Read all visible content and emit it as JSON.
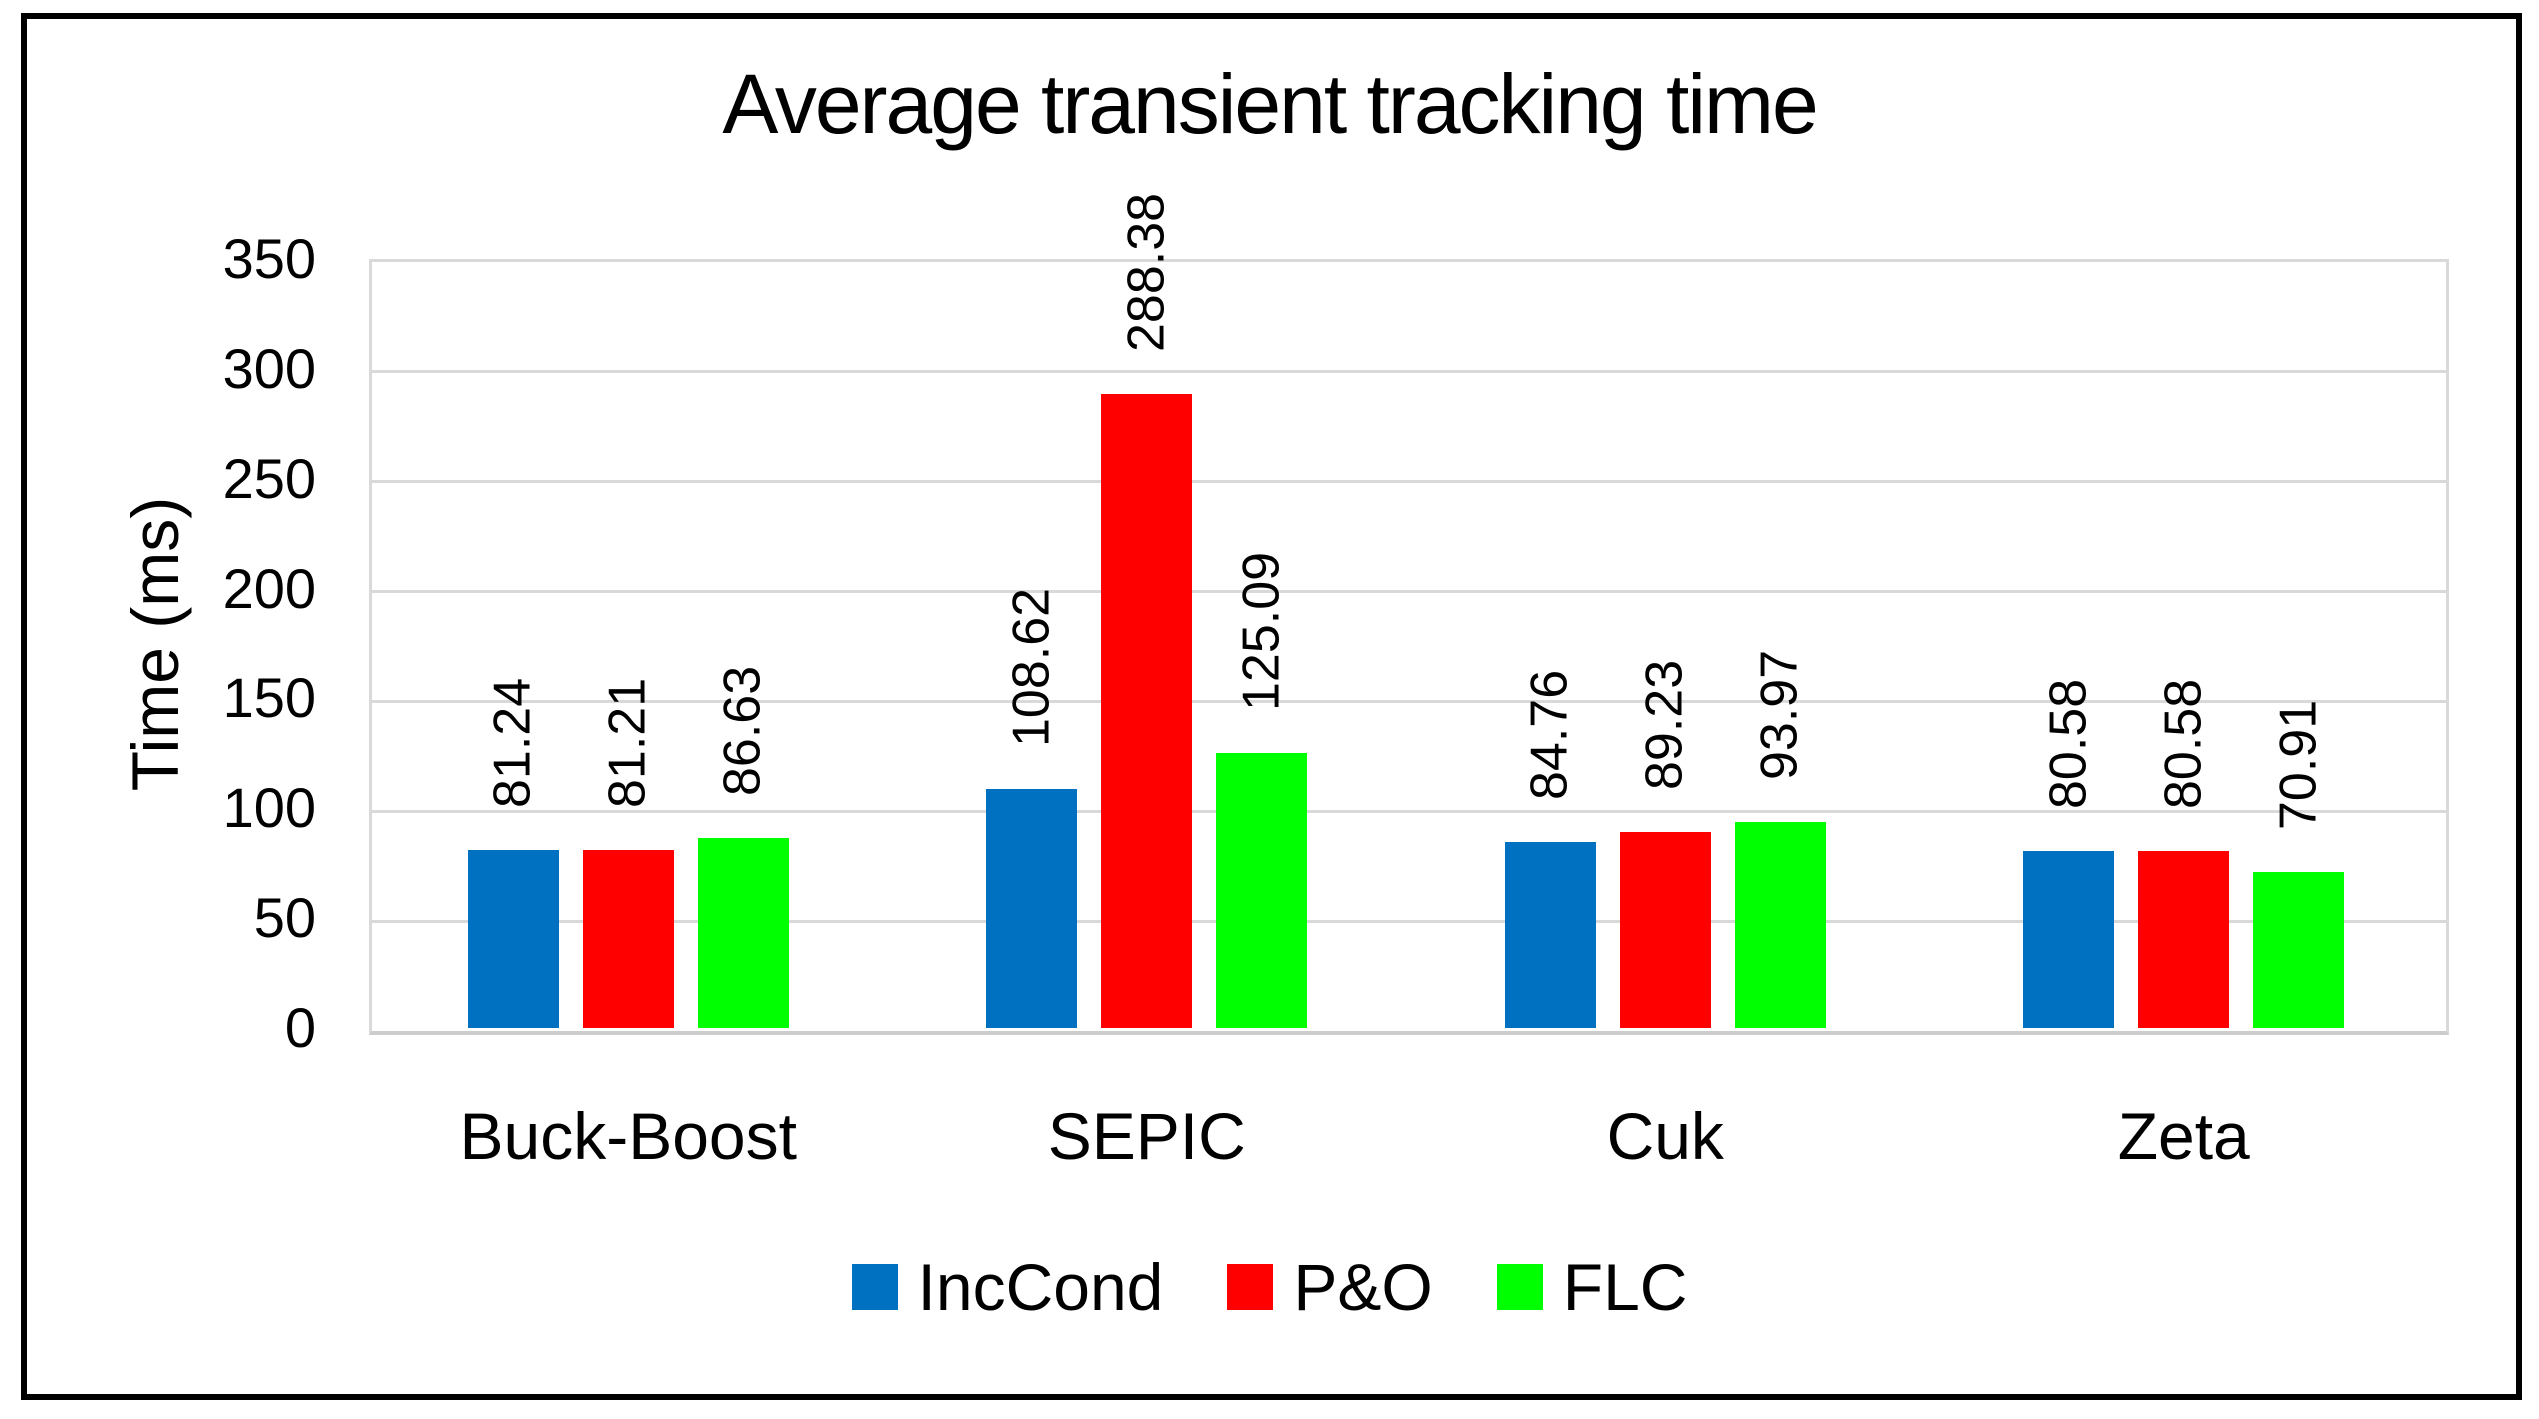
{
  "chart_data": {
    "type": "bar",
    "title": "Average transient tracking time",
    "ylabel": "Time (ms)",
    "xlabel": "",
    "categories": [
      "Buck-Boost",
      "SEPIC",
      "Cuk",
      "Zeta"
    ],
    "series": [
      {
        "name": "IncCond",
        "color": "#0070C0",
        "values": [
          81.24,
          108.62,
          84.76,
          80.58
        ]
      },
      {
        "name": "P&O",
        "color": "#FF0000",
        "values": [
          81.21,
          288.38,
          89.23,
          80.58
        ]
      },
      {
        "name": "FLC",
        "color": "#00FF00",
        "values": [
          86.63,
          125.09,
          93.97,
          70.91
        ]
      }
    ],
    "ylim": [
      0,
      350
    ],
    "ytick_step": 50,
    "ytick_labels": [
      "0",
      "50",
      "100",
      "150",
      "200",
      "250",
      "300",
      "350"
    ],
    "grid": true,
    "legend_position": "bottom",
    "value_labels_rotation": "90deg-ccw",
    "value_labels_decimals": 2,
    "colors": {
      "gridline": "#D9D9D9",
      "axis_line": "#CCCCCC",
      "frame_border": "#000000",
      "text": "#000000",
      "background": "#FFFFFF"
    }
  }
}
